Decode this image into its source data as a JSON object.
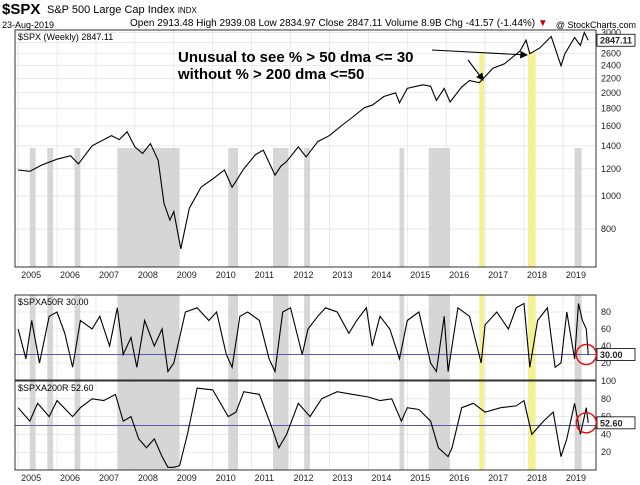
{
  "header": {
    "symbol": "$SPX",
    "name": "S&P 500 Large Cap Index",
    "exchange": "INDX",
    "date": "23-Aug-2019",
    "quote": "Open 2913.48  High 2939.08  Low 2834.97  Close 2847.11  Volume 8.9B  Chg -41.57 (-1.44%)",
    "chg_arrow": "▼",
    "brand": "@ StockCharts.com"
  },
  "annotation": {
    "line1": "Unusual to see % > 50 dma <= 30",
    "line2": "without % > 200 dma <=50"
  },
  "chart_data": [
    {
      "type": "line",
      "title": "$SPX (Weekly) 2847.11",
      "scale": "log",
      "last_value_label": "2847.11",
      "y_ticks": [
        800,
        1000,
        1200,
        1400,
        1600,
        1800,
        2000,
        2200,
        2400,
        2600,
        2800,
        3000
      ],
      "ylim": [
        620,
        3050
      ],
      "x": [
        2005.0,
        2005.3,
        2005.6,
        2006.0,
        2006.35,
        2006.55,
        2006.9,
        2007.4,
        2007.6,
        2007.8,
        2008.0,
        2008.2,
        2008.4,
        2008.6,
        2008.75,
        2008.9,
        2009.0,
        2009.18,
        2009.4,
        2009.7,
        2010.0,
        2010.3,
        2010.5,
        2010.8,
        2011.1,
        2011.3,
        2011.6,
        2011.75,
        2011.9,
        2012.2,
        2012.4,
        2012.7,
        2013.0,
        2013.3,
        2013.6,
        2013.9,
        2014.1,
        2014.4,
        2014.7,
        2014.8,
        2015.0,
        2015.4,
        2015.6,
        2015.75,
        2015.95,
        2016.1,
        2016.4,
        2016.6,
        2016.85,
        2017.2,
        2017.5,
        2017.9,
        2018.05,
        2018.15,
        2018.4,
        2018.7,
        2018.95,
        2019.05,
        2019.3,
        2019.45,
        2019.55,
        2019.65
      ],
      "y": [
        1190,
        1180,
        1230,
        1280,
        1310,
        1240,
        1400,
        1500,
        1460,
        1540,
        1390,
        1330,
        1420,
        1270,
        950,
        850,
        900,
        700,
        920,
        1060,
        1120,
        1190,
        1060,
        1200,
        1320,
        1360,
        1150,
        1220,
        1260,
        1390,
        1300,
        1440,
        1500,
        1600,
        1700,
        1810,
        1840,
        1950,
        2000,
        1870,
        2060,
        2110,
        2090,
        1900,
        2060,
        1880,
        2080,
        2170,
        2140,
        2360,
        2430,
        2650,
        2850,
        2600,
        2700,
        2920,
        2400,
        2600,
        2900,
        2750,
        3000,
        2847
      ],
      "gray_bands": [
        [
          2005.3,
          2005.45
        ],
        [
          2005.75,
          2005.9
        ],
        [
          2006.45,
          2006.6
        ],
        [
          2007.55,
          2009.15
        ],
        [
          2010.4,
          2010.65
        ],
        [
          2011.55,
          2011.95
        ],
        [
          2012.35,
          2012.5
        ],
        [
          2014.8,
          2014.92
        ],
        [
          2015.55,
          2016.1
        ],
        [
          2019.3,
          2019.48
        ]
      ],
      "yellow_bands": [
        [
          2016.85,
          2016.98
        ],
        [
          2018.1,
          2018.3
        ]
      ]
    },
    {
      "type": "line",
      "title": "$SPXA50R 30.00",
      "last_value_label": "30.00",
      "ylim": [
        0,
        100
      ],
      "y_ticks": [
        20,
        40,
        60,
        80
      ],
      "reference_line": 30,
      "x": [
        2005.0,
        2005.2,
        2005.35,
        2005.55,
        2005.8,
        2006.0,
        2006.2,
        2006.4,
        2006.6,
        2006.9,
        2007.1,
        2007.35,
        2007.55,
        2007.7,
        2007.9,
        2008.05,
        2008.25,
        2008.5,
        2008.7,
        2008.85,
        2009.0,
        2009.3,
        2009.6,
        2009.9,
        2010.1,
        2010.35,
        2010.5,
        2010.7,
        2010.9,
        2011.2,
        2011.45,
        2011.6,
        2011.8,
        2012.0,
        2012.3,
        2012.45,
        2012.7,
        2012.9,
        2013.2,
        2013.5,
        2013.7,
        2013.95,
        2014.1,
        2014.3,
        2014.55,
        2014.8,
        2015.0,
        2015.3,
        2015.6,
        2015.75,
        2015.95,
        2016.05,
        2016.3,
        2016.6,
        2016.9,
        2017.0,
        2017.3,
        2017.6,
        2017.8,
        2018.0,
        2018.15,
        2018.35,
        2018.6,
        2018.8,
        2018.95,
        2019.1,
        2019.3,
        2019.4,
        2019.5,
        2019.6,
        2019.65
      ],
      "y": [
        60,
        25,
        70,
        20,
        75,
        80,
        55,
        15,
        70,
        60,
        75,
        40,
        85,
        30,
        50,
        15,
        70,
        40,
        60,
        10,
        20,
        80,
        85,
        70,
        80,
        30,
        15,
        75,
        80,
        70,
        25,
        10,
        80,
        85,
        30,
        60,
        75,
        85,
        80,
        55,
        70,
        85,
        40,
        75,
        60,
        25,
        70,
        80,
        20,
        10,
        75,
        10,
        85,
        75,
        20,
        65,
        80,
        60,
        85,
        90,
        15,
        70,
        85,
        15,
        20,
        80,
        25,
        90,
        70,
        60,
        30
      ],
      "gray_bands": [
        [
          2005.3,
          2005.45
        ],
        [
          2005.75,
          2005.9
        ],
        [
          2006.45,
          2006.6
        ],
        [
          2007.55,
          2009.15
        ],
        [
          2010.4,
          2010.65
        ],
        [
          2011.55,
          2011.95
        ],
        [
          2012.35,
          2012.5
        ],
        [
          2014.8,
          2014.92
        ],
        [
          2015.55,
          2016.1
        ],
        [
          2019.3,
          2019.48
        ]
      ],
      "yellow_bands": [
        [
          2016.85,
          2016.98
        ],
        [
          2018.1,
          2018.3
        ]
      ]
    },
    {
      "type": "line",
      "title": "$SPXA200R 52.60",
      "last_value_label": "52.60",
      "ylim": [
        0,
        100
      ],
      "y_ticks": [
        20,
        40,
        60,
        80,
        100
      ],
      "reference_line": 50,
      "x": [
        2005.0,
        2005.3,
        2005.5,
        2005.8,
        2006.0,
        2006.4,
        2006.6,
        2006.9,
        2007.2,
        2007.5,
        2007.7,
        2007.9,
        2008.1,
        2008.3,
        2008.5,
        2008.7,
        2008.85,
        2009.0,
        2009.15,
        2009.35,
        2009.6,
        2010.0,
        2010.4,
        2010.6,
        2010.8,
        2011.2,
        2011.5,
        2011.7,
        2011.9,
        2012.2,
        2012.5,
        2012.8,
        2013.2,
        2013.6,
        2014.0,
        2014.3,
        2014.6,
        2014.85,
        2015.0,
        2015.3,
        2015.6,
        2015.8,
        2016.05,
        2016.15,
        2016.4,
        2016.7,
        2017.0,
        2017.4,
        2017.8,
        2018.0,
        2018.2,
        2018.5,
        2018.75,
        2018.95,
        2019.1,
        2019.3,
        2019.45,
        2019.6,
        2019.65
      ],
      "y": [
        70,
        55,
        75,
        60,
        78,
        60,
        70,
        80,
        78,
        85,
        55,
        60,
        35,
        25,
        35,
        15,
        3,
        3,
        5,
        40,
        92,
        90,
        60,
        65,
        88,
        85,
        50,
        25,
        40,
        75,
        60,
        80,
        88,
        85,
        82,
        78,
        80,
        55,
        70,
        68,
        55,
        25,
        15,
        25,
        70,
        75,
        65,
        70,
        72,
        78,
        40,
        55,
        65,
        15,
        35,
        75,
        40,
        70,
        53
      ],
      "gray_bands": [
        [
          2005.3,
          2005.45
        ],
        [
          2005.75,
          2005.9
        ],
        [
          2006.45,
          2006.6
        ],
        [
          2007.55,
          2009.15
        ],
        [
          2010.4,
          2010.65
        ],
        [
          2011.55,
          2011.95
        ],
        [
          2012.35,
          2012.5
        ],
        [
          2014.8,
          2014.92
        ],
        [
          2015.55,
          2016.1
        ],
        [
          2019.3,
          2019.48
        ]
      ],
      "yellow_bands": [
        [
          2016.85,
          2016.98
        ],
        [
          2018.1,
          2018.3
        ]
      ]
    }
  ],
  "x_axis": {
    "xlim": [
      2004.92,
      2019.85
    ],
    "ticks": [
      2005,
      2006,
      2007,
      2008,
      2009,
      2010,
      2011,
      2012,
      2013,
      2014,
      2015,
      2016,
      2017,
      2018,
      2019
    ],
    "tick_labels": [
      "2005",
      "2006",
      "2007",
      "2008",
      "2009",
      "2010",
      "2011",
      "2012",
      "2013",
      "2014",
      "2015",
      "2016",
      "2017",
      "2018",
      "2019"
    ]
  },
  "colors": {
    "gray_band": "#cfcfcf",
    "yellow_band": "#f3f08a",
    "line": "#000000",
    "reference": "#5a5aa8",
    "circle": "#e01010",
    "grid": "#dddddd"
  }
}
